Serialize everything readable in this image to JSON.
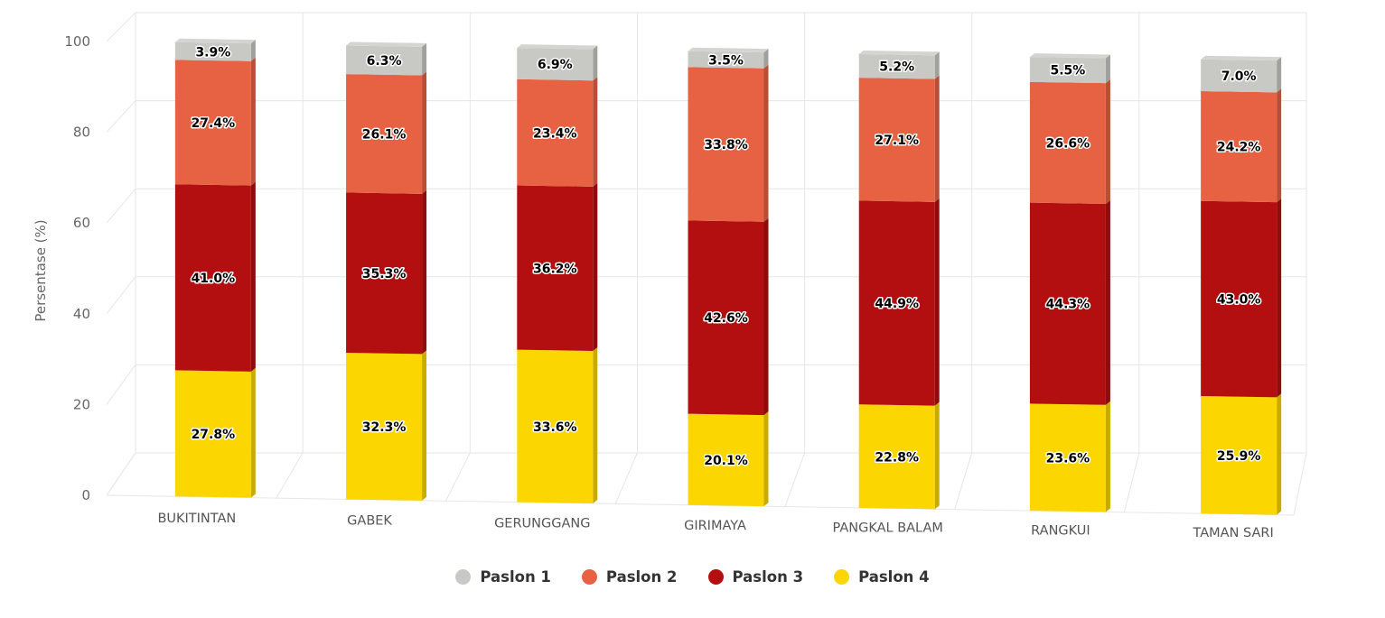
{
  "chart_data": {
    "type": "bar",
    "stacked": true,
    "percent": true,
    "three_d": true,
    "title": "",
    "xlabel": "",
    "ylabel": "Persentase (%)",
    "ylim": [
      0,
      100
    ],
    "yticks": [
      "0",
      "20",
      "40",
      "60",
      "80",
      "100"
    ],
    "grid": true,
    "legend_position": "bottom-center",
    "categories": [
      "BUKITINTAN",
      "GABEK",
      "GERUNGGANG",
      "GIRIMAYA",
      "PANGKAL BALAM",
      "RANGKUI",
      "TAMAN SARI"
    ],
    "series": [
      {
        "name": "Paslon 1",
        "color": "#c8c8c4",
        "values": [
          3.9,
          6.3,
          6.9,
          3.5,
          5.2,
          5.5,
          7.0
        ],
        "labels": [
          "3.9%",
          "6.3%",
          "6.9%",
          "3.5%",
          "5.2%",
          "5.5%",
          "7.0%"
        ]
      },
      {
        "name": "Paslon 2",
        "color": "#e66242",
        "values": [
          27.4,
          26.1,
          23.4,
          33.8,
          27.1,
          26.6,
          24.2
        ],
        "labels": [
          "27.4%",
          "26.1%",
          "23.4%",
          "33.8%",
          "27.1%",
          "26.6%",
          "24.2%"
        ]
      },
      {
        "name": "Paslon 3",
        "color": "#b30f10",
        "values": [
          41.0,
          35.3,
          36.2,
          42.6,
          44.9,
          44.3,
          43.0
        ],
        "labels": [
          "41.0%",
          "35.3%",
          "36.2%",
          "42.6%",
          "44.9%",
          "44.3%",
          "43.0%"
        ]
      },
      {
        "name": "Paslon 4",
        "color": "#fbd600",
        "values": [
          27.8,
          32.3,
          33.6,
          20.1,
          22.8,
          23.6,
          25.9
        ],
        "labels": [
          "27.8%",
          "32.3%",
          "33.6%",
          "20.1%",
          "22.8%",
          "23.6%",
          "25.9%"
        ]
      }
    ]
  }
}
